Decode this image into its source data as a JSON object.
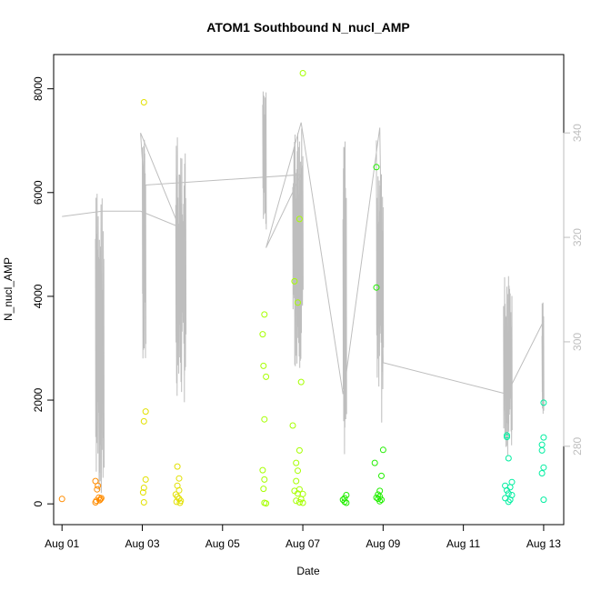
{
  "chart_data": {
    "type": "scatter",
    "title": "ATOM1 Southbound N_nucl_AMP",
    "xlabel": "Date",
    "ylabel": "N_nucl_AMP",
    "x_ticks": [
      "Aug 01",
      "Aug 03",
      "Aug 05",
      "Aug 07",
      "Aug 09",
      "Aug 11",
      "Aug 13"
    ],
    "y_ticks": [
      "0",
      "2000",
      "4000",
      "6000",
      "8000"
    ],
    "y2_ticks": [
      "280",
      "300",
      "320",
      "340"
    ],
    "xlim": [
      "2016-07-31T19:00",
      "2016-08-13T12:00"
    ],
    "ylim": [
      -400,
      8660
    ],
    "y2lim": [
      265,
      355
    ],
    "grid": false,
    "legend": "none",
    "line_color": "#bebebe",
    "right_axis_color": "#bebebe",
    "series": [
      {
        "kind": "points",
        "color": "#ff8c00",
        "points": [
          [
            "2016-08-01T00:00",
            95
          ],
          [
            "2016-08-01T20:00",
            440
          ],
          [
            "2016-08-01T21:00",
            280
          ],
          [
            "2016-08-01T21:30",
            350
          ],
          [
            "2016-08-01T20:30",
            60
          ],
          [
            "2016-08-01T22:00",
            120
          ],
          [
            "2016-08-01T22:30",
            70
          ],
          [
            "2016-08-01T23:00",
            90
          ],
          [
            "2016-08-01T23:30",
            110
          ],
          [
            "2016-08-01T20:00",
            30
          ]
        ]
      },
      {
        "kind": "points",
        "color": "#e2e000",
        "points": [
          [
            "2016-08-03T01:00",
            7740
          ],
          [
            "2016-08-03T02:00",
            1780
          ],
          [
            "2016-08-03T01:00",
            1590
          ],
          [
            "2016-08-03T02:00",
            470
          ],
          [
            "2016-08-03T01:00",
            310
          ],
          [
            "2016-08-03T00:30",
            220
          ],
          [
            "2016-08-03T01:00",
            30
          ],
          [
            "2016-08-03T21:00",
            720
          ],
          [
            "2016-08-03T22:00",
            490
          ],
          [
            "2016-08-03T21:00",
            350
          ],
          [
            "2016-08-03T22:00",
            260
          ],
          [
            "2016-08-03T20:00",
            180
          ],
          [
            "2016-08-03T21:00",
            140
          ],
          [
            "2016-08-03T22:00",
            100
          ],
          [
            "2016-08-03T23:00",
            60
          ],
          [
            "2016-08-03T20:30",
            40
          ],
          [
            "2016-08-03T22:30",
            20
          ]
        ]
      },
      {
        "kind": "points",
        "color": "#a6ff00",
        "points": [
          [
            "2016-08-06T01:00",
            3650
          ],
          [
            "2016-08-06T00:00",
            3270
          ],
          [
            "2016-08-06T00:30",
            2660
          ],
          [
            "2016-08-06T02:00",
            2450
          ],
          [
            "2016-08-06T01:00",
            1630
          ],
          [
            "2016-08-06T00:00",
            650
          ],
          [
            "2016-08-06T01:00",
            470
          ],
          [
            "2016-08-06T00:30",
            290
          ],
          [
            "2016-08-06T01:00",
            20
          ],
          [
            "2016-08-06T02:00",
            10
          ],
          [
            "2016-08-07T00:00",
            8300
          ],
          [
            "2016-08-06T22:00",
            5490
          ],
          [
            "2016-08-06T19:00",
            4290
          ],
          [
            "2016-08-06T21:00",
            3880
          ],
          [
            "2016-08-06T23:00",
            2350
          ],
          [
            "2016-08-06T18:00",
            1510
          ],
          [
            "2016-08-06T22:00",
            1030
          ],
          [
            "2016-08-06T20:00",
            790
          ],
          [
            "2016-08-06T21:00",
            640
          ],
          [
            "2016-08-06T20:00",
            440
          ],
          [
            "2016-08-06T22:00",
            280
          ],
          [
            "2016-08-06T19:00",
            250
          ],
          [
            "2016-08-06T21:00",
            200
          ],
          [
            "2016-08-07T00:00",
            190
          ],
          [
            "2016-08-06T23:00",
            90
          ],
          [
            "2016-08-06T20:00",
            60
          ],
          [
            "2016-08-06T22:00",
            30
          ],
          [
            "2016-08-07T00:00",
            20
          ]
        ]
      },
      {
        "kind": "points",
        "color": "#22ee00",
        "points": [
          [
            "2016-08-08T02:00",
            170
          ],
          [
            "2016-08-08T01:00",
            110
          ],
          [
            "2016-08-08T00:00",
            80
          ],
          [
            "2016-08-08T01:00",
            40
          ],
          [
            "2016-08-08T02:00",
            20
          ],
          [
            "2016-08-08T20:00",
            6490
          ],
          [
            "2016-08-08T20:00",
            4170
          ],
          [
            "2016-08-09T00:00",
            1040
          ],
          [
            "2016-08-08T19:00",
            790
          ],
          [
            "2016-08-08T23:00",
            540
          ],
          [
            "2016-08-08T22:00",
            250
          ],
          [
            "2016-08-08T21:00",
            180
          ],
          [
            "2016-08-08T22:00",
            140
          ],
          [
            "2016-08-08T20:00",
            120
          ],
          [
            "2016-08-08T21:00",
            100
          ],
          [
            "2016-08-08T23:00",
            80
          ],
          [
            "2016-08-08T22:00",
            50
          ]
        ]
      },
      {
        "kind": "points",
        "color": "#00eea0",
        "points": [
          [
            "2016-08-12T02:00",
            1320
          ],
          [
            "2016-08-12T02:00",
            1290
          ],
          [
            "2016-08-12T03:00",
            880
          ],
          [
            "2016-08-12T05:00",
            420
          ],
          [
            "2016-08-12T01:00",
            350
          ],
          [
            "2016-08-12T04:00",
            320
          ],
          [
            "2016-08-12T02:00",
            260
          ],
          [
            "2016-08-12T03:00",
            200
          ],
          [
            "2016-08-12T05:00",
            170
          ],
          [
            "2016-08-12T01:00",
            110
          ],
          [
            "2016-08-12T04:00",
            80
          ],
          [
            "2016-08-12T03:00",
            40
          ],
          [
            "2016-08-13T00:00",
            1950
          ],
          [
            "2016-08-13T00:00",
            1280
          ],
          [
            "2016-08-12T23:00",
            1140
          ],
          [
            "2016-08-12T23:00",
            1030
          ],
          [
            "2016-08-13T00:00",
            700
          ],
          [
            "2016-08-12T23:00",
            590
          ],
          [
            "2016-08-13T00:00",
            80
          ]
        ]
      },
      {
        "kind": "line",
        "axis": "right",
        "color": "#bebebe",
        "points": [
          [
            "2016-08-01T00:00",
            324
          ],
          [
            "2016-08-02T00:00",
            325
          ],
          [
            "2016-08-02T23:00",
            325
          ],
          [
            "2016-08-03T22:00",
            322
          ],
          [
            "2016-08-02T23:00",
            340
          ],
          [
            "2016-08-03T01:00",
            330
          ],
          [
            "2016-08-06T23:00",
            332
          ],
          [
            "2016-08-06T02:00",
            318
          ],
          [
            "2016-08-06T23:00",
            342
          ],
          [
            "2016-08-08T00:00",
            290
          ],
          [
            "2016-08-08T02:00",
            294
          ],
          [
            "2016-08-08T22:00",
            341
          ],
          [
            "2016-08-09T00:00",
            296
          ],
          [
            "2016-08-12T02:00",
            290
          ],
          [
            "2016-08-13T00:00",
            304
          ]
        ]
      },
      {
        "kind": "spikes",
        "axis": "right",
        "color": "#bebebe",
        "clusters": [
          {
            "start": "2016-08-01T20:00",
            "end": "2016-08-02T01:00",
            "min": 270,
            "max": 330
          },
          {
            "start": "2016-08-03T00:00",
            "end": "2016-08-03T02:00",
            "min": 293,
            "max": 340
          },
          {
            "start": "2016-08-03T20:00",
            "end": "2016-08-04T02:00",
            "min": 288,
            "max": 340
          },
          {
            "start": "2016-08-06T00:00",
            "end": "2016-08-06T02:00",
            "min": 320,
            "max": 348
          },
          {
            "start": "2016-08-06T18:00",
            "end": "2016-08-07T00:00",
            "min": 295,
            "max": 341
          },
          {
            "start": "2016-08-08T00:00",
            "end": "2016-08-08T02:00",
            "min": 277,
            "max": 339
          },
          {
            "start": "2016-08-08T20:00",
            "end": "2016-08-09T00:00",
            "min": 283,
            "max": 341
          },
          {
            "start": "2016-08-12T00:00",
            "end": "2016-08-12T05:00",
            "min": 278,
            "max": 313
          },
          {
            "start": "2016-08-12T23:00",
            "end": "2016-08-13T00:00",
            "min": 286,
            "max": 308
          }
        ]
      }
    ]
  }
}
